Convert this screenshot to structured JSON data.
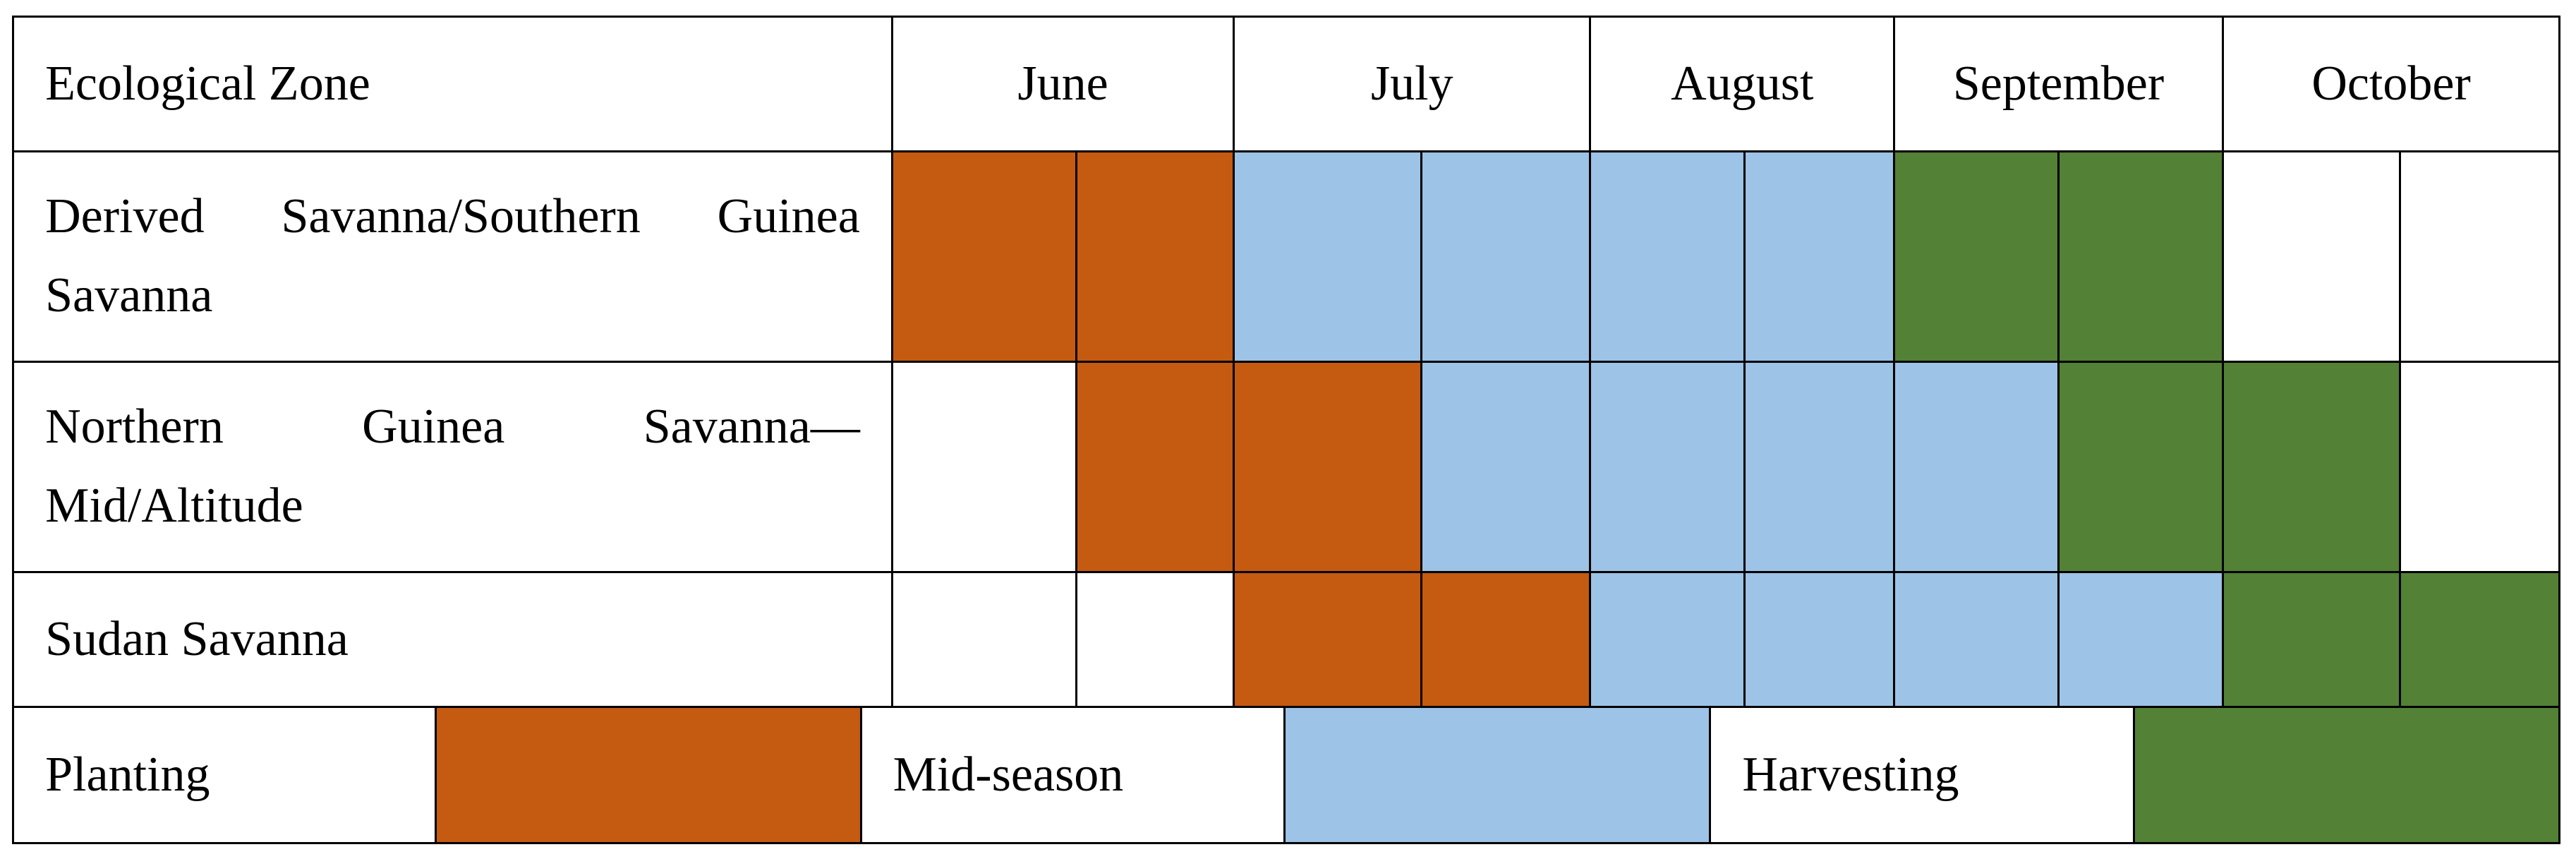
{
  "header": {
    "zone": "Ecological Zone",
    "months": [
      "June",
      "July",
      "August",
      "September",
      "October"
    ]
  },
  "rows": [
    {
      "zone": "Derived Savanna/Southern Guinea Savanna",
      "phases": [
        0,
        0,
        1,
        1,
        1,
        1,
        2,
        2,
        null,
        null
      ]
    },
    {
      "zone": "Northern Guinea Savanna—Mid/Altitude",
      "phases": [
        null,
        0,
        0,
        1,
        1,
        1,
        1,
        2,
        2,
        null
      ]
    },
    {
      "zone": "Sudan Savanna",
      "phases": [
        null,
        null,
        0,
        0,
        1,
        1,
        1,
        1,
        2,
        2
      ]
    }
  ],
  "legend": [
    {
      "label": "Planting",
      "color": "#c55a11"
    },
    {
      "label": "Mid-season",
      "color": "#9dc3e6"
    },
    {
      "label": "Harvesting",
      "color": "#538135"
    }
  ]
}
